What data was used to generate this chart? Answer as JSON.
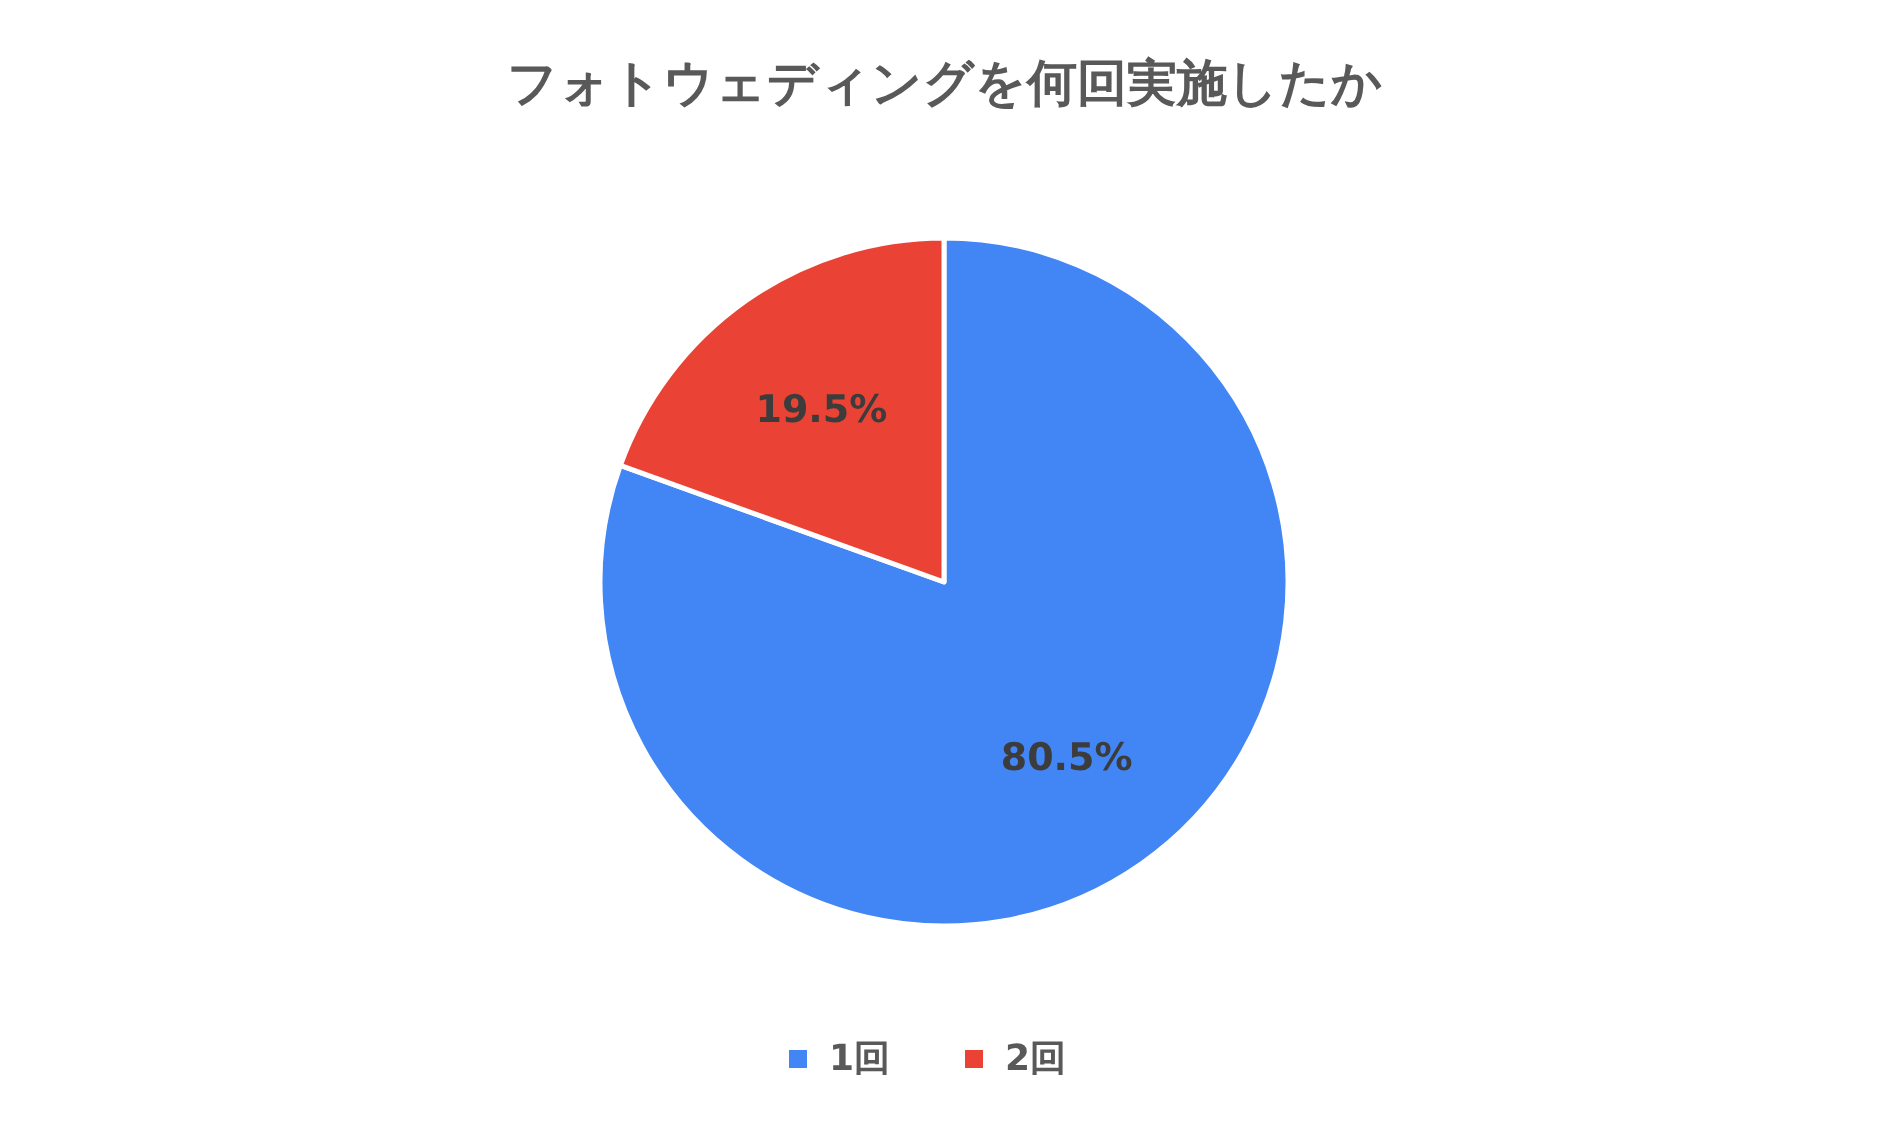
{
  "chart_data": {
    "type": "pie",
    "title": "フォトウェディングを何回実施したか",
    "categories": [
      "1回",
      "2回"
    ],
    "values": [
      80.5,
      19.5
    ],
    "colors": [
      "#4285f4",
      "#ea4335"
    ],
    "value_labels": [
      "80.5%",
      "19.5%"
    ],
    "legend": "bottom"
  }
}
